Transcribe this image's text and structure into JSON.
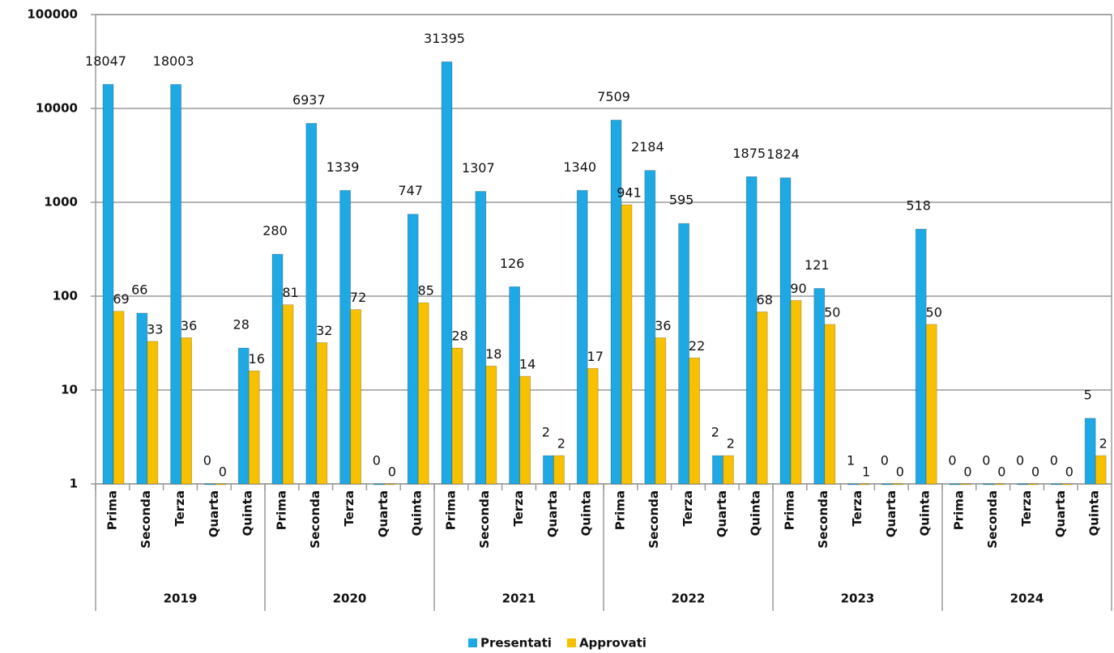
{
  "chart_data": {
    "type": "bar",
    "log_scale": true,
    "grid": true,
    "legend": "bottom",
    "categories": [
      "Prima",
      "Seconda",
      "Terza",
      "Quarta",
      "Quinta",
      "Prima",
      "Seconda",
      "Terza",
      "Quarta",
      "Quinta",
      "Prima",
      "Seconda",
      "Terza",
      "Quarta",
      "Quinta",
      "Prima",
      "Seconda",
      "Terza",
      "Quarta",
      "Quinta",
      "Prima",
      "Seconda",
      "Terza",
      "Quarta",
      "Quinta",
      "Prima",
      "Seconda",
      "Terza",
      "Quarta",
      "Quinta"
    ],
    "groups": [
      "2019",
      "2020",
      "2021",
      "2022",
      "2023",
      "2024"
    ],
    "series": [
      {
        "name": "Presentati",
        "color": "#1ea8e4",
        "values": [
          18047,
          66,
          18003,
          0,
          28,
          280,
          6937,
          1339,
          0,
          747,
          31395,
          1307,
          126,
          2,
          1340,
          7509,
          2184,
          595,
          2,
          1875,
          1824,
          121,
          1,
          0,
          518,
          0,
          0,
          0,
          0,
          5
        ]
      },
      {
        "name": "Approvati",
        "color": "#f7c100",
        "values": [
          69,
          33,
          36,
          0,
          16,
          81,
          32,
          72,
          0,
          85,
          28,
          18,
          14,
          2,
          17,
          941,
          36,
          22,
          2,
          68,
          90,
          50,
          1,
          0,
          50,
          0,
          0,
          0,
          0,
          2
        ]
      }
    ],
    "ylim": [
      1,
      100000
    ],
    "yticks": [
      1,
      10,
      100,
      1000,
      10000,
      100000
    ]
  }
}
